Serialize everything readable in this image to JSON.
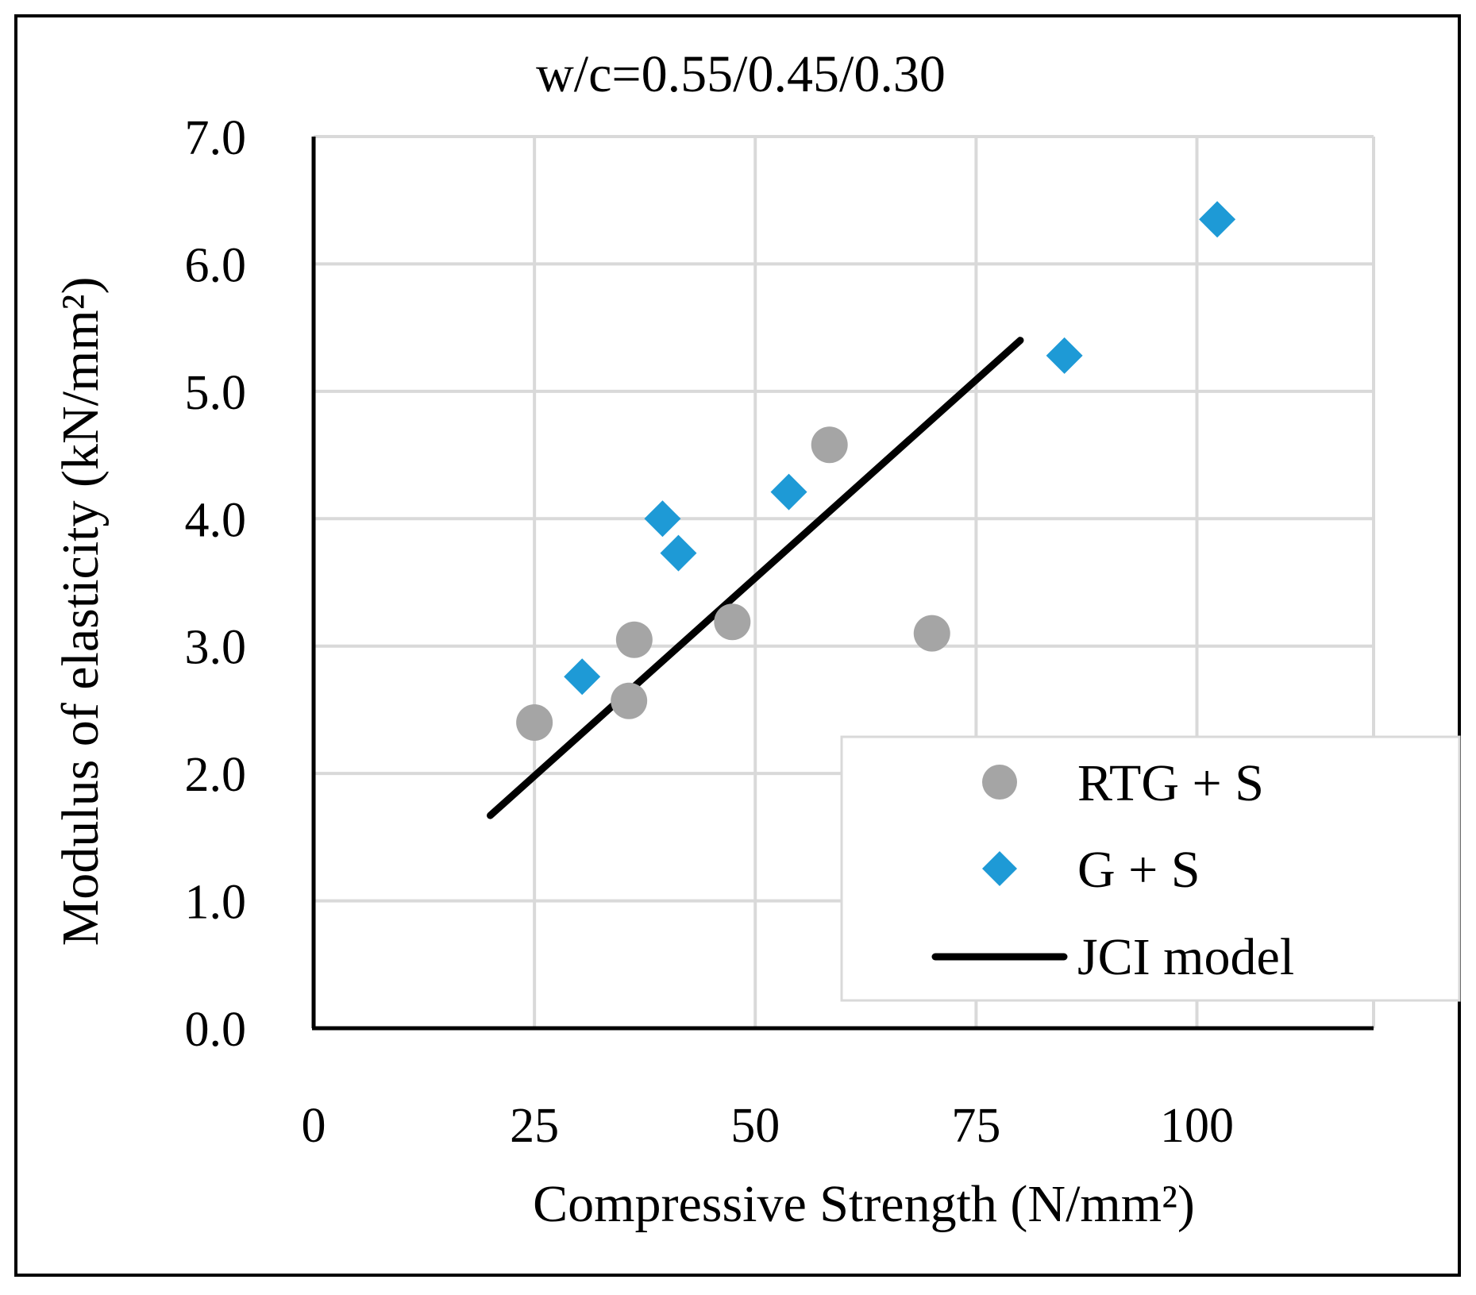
{
  "chart_data": {
    "type": "scatter",
    "title": "w/c=0.55/0.45/0.30",
    "xlabel": "Compressive Strength (N/mm²)",
    "ylabel": "Modulus of elasticity (kN/mm²)",
    "xlim": [
      0,
      120
    ],
    "ylim": [
      0,
      7
    ],
    "x_ticks": [
      0,
      25,
      50,
      75,
      100
    ],
    "x_tick_labels": [
      "0",
      "25",
      "50",
      "75",
      "100"
    ],
    "x_grid": [
      25,
      50,
      75,
      100,
      120
    ],
    "y_ticks": [
      0,
      1,
      2,
      3,
      4,
      5,
      6,
      7
    ],
    "y_tick_labels": [
      "0.0",
      "1.0",
      "2.0",
      "3.0",
      "4.0",
      "5.0",
      "6.0",
      "7.0"
    ],
    "grid": true,
    "legend_position": "bottom-right",
    "series": [
      {
        "name": "RTG + S",
        "marker": "circle",
        "color": "#A5A5A5",
        "points": [
          {
            "x": 25.0,
            "y": 2.4
          },
          {
            "x": 35.7,
            "y": 2.57
          },
          {
            "x": 36.3,
            "y": 3.05
          },
          {
            "x": 47.4,
            "y": 3.19
          },
          {
            "x": 58.4,
            "y": 4.58
          },
          {
            "x": 70.0,
            "y": 3.1
          }
        ]
      },
      {
        "name": "G + S",
        "marker": "diamond",
        "color": "#1E9AD6",
        "points": [
          {
            "x": 30.4,
            "y": 2.76
          },
          {
            "x": 39.5,
            "y": 4.0
          },
          {
            "x": 41.3,
            "y": 3.73
          },
          {
            "x": 53.8,
            "y": 4.21
          },
          {
            "x": 85.0,
            "y": 5.28
          },
          {
            "x": 102.3,
            "y": 6.35
          }
        ]
      },
      {
        "name": "JCI model",
        "marker": "line",
        "color": "#000000",
        "points": [
          {
            "x": 20,
            "y": 1.67
          },
          {
            "x": 80,
            "y": 5.4
          }
        ]
      }
    ]
  }
}
